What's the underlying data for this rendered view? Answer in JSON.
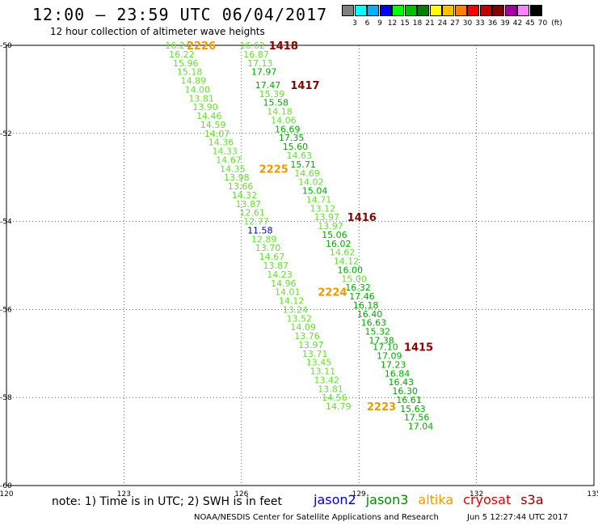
{
  "header": {
    "title": "12:00 – 23:59 UTC 06/04/2017",
    "subtitle": "12 hour collection of altimeter wave heights"
  },
  "colorbar": {
    "units": "(ft)",
    "labels": [
      "3",
      "6",
      "9",
      "12",
      "15",
      "18",
      "21",
      "24",
      "27",
      "30",
      "33",
      "36",
      "39",
      "42",
      "45",
      "70"
    ],
    "colors": [
      "#808080",
      "#00ffff",
      "#00b0ff",
      "#0000ff",
      "#00ff00",
      "#00c000",
      "#008000",
      "#ffff00",
      "#ffc000",
      "#ff8000",
      "#ff0000",
      "#c00000",
      "#800000",
      "#a000a0",
      "#ff80ff",
      "#000000"
    ]
  },
  "map": {
    "lon_ticks": [
      "120",
      "123",
      "126",
      "129",
      "132",
      "135"
    ],
    "lat_ticks": [
      "-50",
      "-52",
      "-54",
      "-56",
      "-58",
      "-60"
    ],
    "lon_range": [
      120,
      135
    ],
    "lat_range": [
      -50,
      -60
    ],
    "colors": {
      "light_green": "#66dd33",
      "green": "#00aa00",
      "blue": "#0000cc",
      "orange": "#ee9900",
      "maroon": "#880000"
    },
    "tracks": [
      {
        "label": "2226",
        "label_color": "orange",
        "label_pos": [
          124.6,
          -50.0
        ],
        "points": [
          {
            "v": "16.24",
            "lon": 124.05,
            "lat": -50.0,
            "c": "light_green"
          },
          {
            "v": "16.22",
            "lon": 124.15,
            "lat": -50.2,
            "c": "light_green"
          },
          {
            "v": "15.96",
            "lon": 124.25,
            "lat": -50.4,
            "c": "light_green"
          },
          {
            "v": "15.18",
            "lon": 124.35,
            "lat": -50.6,
            "c": "light_green"
          },
          {
            "v": "14.89",
            "lon": 124.45,
            "lat": -50.8,
            "c": "light_green"
          },
          {
            "v": "14.00",
            "lon": 124.55,
            "lat": -51.0,
            "c": "light_green"
          },
          {
            "v": "13.81",
            "lon": 124.65,
            "lat": -51.2,
            "c": "light_green"
          },
          {
            "v": "13.90",
            "lon": 124.75,
            "lat": -51.4,
            "c": "light_green"
          },
          {
            "v": "14.46",
            "lon": 124.85,
            "lat": -51.6,
            "c": "light_green"
          },
          {
            "v": "14.59",
            "lon": 124.95,
            "lat": -51.8,
            "c": "light_green"
          },
          {
            "v": "14.07",
            "lon": 125.05,
            "lat": -52.0,
            "c": "light_green"
          },
          {
            "v": "14.36",
            "lon": 125.15,
            "lat": -52.2,
            "c": "light_green"
          },
          {
            "v": "14.33",
            "lon": 125.25,
            "lat": -52.4,
            "c": "light_green"
          },
          {
            "v": "14.67",
            "lon": 125.35,
            "lat": -52.6,
            "c": "light_green"
          },
          {
            "v": "14.35",
            "lon": 125.45,
            "lat": -52.8,
            "c": "light_green"
          }
        ]
      },
      {
        "label": "2225",
        "label_color": "orange",
        "label_pos": [
          126.45,
          -52.8
        ],
        "points": [
          {
            "v": "13.98",
            "lon": 125.55,
            "lat": -53.0,
            "c": "light_green"
          },
          {
            "v": "13.66",
            "lon": 125.65,
            "lat": -53.2,
            "c": "light_green"
          },
          {
            "v": "14.32",
            "lon": 125.75,
            "lat": -53.4,
            "c": "light_green"
          },
          {
            "v": "13.87",
            "lon": 125.85,
            "lat": -53.6,
            "c": "light_green"
          },
          {
            "v": "12.61",
            "lon": 125.95,
            "lat": -53.8,
            "c": "light_green"
          },
          {
            "v": "12.77",
            "lon": 126.05,
            "lat": -54.0,
            "c": "light_green"
          },
          {
            "v": "11.58",
            "lon": 126.15,
            "lat": -54.2,
            "c": "blue"
          },
          {
            "v": "12.89",
            "lon": 126.25,
            "lat": -54.4,
            "c": "light_green"
          },
          {
            "v": "13.70",
            "lon": 126.35,
            "lat": -54.6,
            "c": "light_green"
          },
          {
            "v": "14.67",
            "lon": 126.45,
            "lat": -54.8,
            "c": "light_green"
          },
          {
            "v": "13.87",
            "lon": 126.55,
            "lat": -55.0,
            "c": "light_green"
          },
          {
            "v": "14.23",
            "lon": 126.65,
            "lat": -55.2,
            "c": "light_green"
          },
          {
            "v": "14.96",
            "lon": 126.75,
            "lat": -55.4,
            "c": "light_green"
          },
          {
            "v": "14.01",
            "lon": 126.85,
            "lat": -55.6,
            "c": "light_green"
          }
        ]
      },
      {
        "label": "2224",
        "label_color": "orange",
        "label_pos": [
          127.95,
          -55.6
        ],
        "points": [
          {
            "v": "14.12",
            "lon": 126.95,
            "lat": -55.8,
            "c": "light_green"
          },
          {
            "v": "13.24",
            "lon": 127.05,
            "lat": -56.0,
            "c": "light_green"
          },
          {
            "v": "13.52",
            "lon": 127.15,
            "lat": -56.2,
            "c": "light_green"
          },
          {
            "v": "14.09",
            "lon": 127.25,
            "lat": -56.4,
            "c": "light_green"
          },
          {
            "v": "13.76",
            "lon": 127.35,
            "lat": -56.6,
            "c": "light_green"
          },
          {
            "v": "13.97",
            "lon": 127.45,
            "lat": -56.8,
            "c": "light_green"
          },
          {
            "v": "13.71",
            "lon": 127.55,
            "lat": -57.0,
            "c": "light_green"
          },
          {
            "v": "13.45",
            "lon": 127.65,
            "lat": -57.2,
            "c": "light_green"
          },
          {
            "v": "13.11",
            "lon": 127.75,
            "lat": -57.4,
            "c": "light_green"
          },
          {
            "v": "13.42",
            "lon": 127.85,
            "lat": -57.6,
            "c": "light_green"
          },
          {
            "v": "13.81",
            "lon": 127.95,
            "lat": -57.8,
            "c": "light_green"
          },
          {
            "v": "14.56",
            "lon": 128.05,
            "lat": -58.0,
            "c": "light_green"
          },
          {
            "v": "14.79",
            "lon": 128.15,
            "lat": -58.2,
            "c": "light_green"
          }
        ]
      },
      {
        "label": "1418",
        "label_color": "maroon",
        "label_pos": [
          126.7,
          -50.0
        ],
        "points": [
          {
            "v": "16.62",
            "lon": 125.95,
            "lat": -50.0,
            "c": "light_green"
          },
          {
            "v": "16.87",
            "lon": 126.05,
            "lat": -50.2,
            "c": "light_green"
          },
          {
            "v": "17.13",
            "lon": 126.15,
            "lat": -50.4,
            "c": "light_green"
          },
          {
            "v": "17.97",
            "lon": 126.25,
            "lat": -50.6,
            "c": "green"
          },
          {
            "v": "17.47",
            "lon": 126.35,
            "lat": -50.9,
            "c": "green"
          }
        ]
      },
      {
        "label": "1417",
        "label_color": "maroon",
        "label_pos": [
          127.25,
          -50.9
        ],
        "points": [
          {
            "v": "15.39",
            "lon": 126.45,
            "lat": -51.1,
            "c": "light_green"
          },
          {
            "v": "15.58",
            "lon": 126.55,
            "lat": -51.3,
            "c": "green"
          },
          {
            "v": "14.18",
            "lon": 126.65,
            "lat": -51.5,
            "c": "light_green"
          },
          {
            "v": "14.06",
            "lon": 126.75,
            "lat": -51.7,
            "c": "light_green"
          },
          {
            "v": "16.69",
            "lon": 126.85,
            "lat": -51.9,
            "c": "green"
          },
          {
            "v": "17.35",
            "lon": 126.95,
            "lat": -52.1,
            "c": "green"
          },
          {
            "v": "15.60",
            "lon": 127.05,
            "lat": -52.3,
            "c": "green"
          },
          {
            "v": "14.63",
            "lon": 127.15,
            "lat": -52.5,
            "c": "light_green"
          },
          {
            "v": "15.71",
            "lon": 127.25,
            "lat": -52.7,
            "c": "green"
          },
          {
            "v": "14.69",
            "lon": 127.35,
            "lat": -52.9,
            "c": "light_green"
          },
          {
            "v": "14.02",
            "lon": 127.45,
            "lat": -53.1,
            "c": "light_green"
          },
          {
            "v": "15.04",
            "lon": 127.55,
            "lat": -53.3,
            "c": "green"
          },
          {
            "v": "14.71",
            "lon": 127.65,
            "lat": -53.5,
            "c": "light_green"
          },
          {
            "v": "13.12",
            "lon": 127.75,
            "lat": -53.7,
            "c": "light_green"
          },
          {
            "v": "13.97",
            "lon": 127.85,
            "lat": -53.9,
            "c": "light_green"
          }
        ]
      },
      {
        "label": "1416",
        "label_color": "maroon",
        "label_pos": [
          128.7,
          -53.9
        ],
        "points": [
          {
            "v": "13.97",
            "lon": 127.95,
            "lat": -54.1,
            "c": "light_green"
          },
          {
            "v": "15.06",
            "lon": 128.05,
            "lat": -54.3,
            "c": "green"
          },
          {
            "v": "16.02",
            "lon": 128.15,
            "lat": -54.5,
            "c": "green"
          },
          {
            "v": "14.62",
            "lon": 128.25,
            "lat": -54.7,
            "c": "light_green"
          },
          {
            "v": "14.12",
            "lon": 128.35,
            "lat": -54.9,
            "c": "light_green"
          },
          {
            "v": "16.00",
            "lon": 128.45,
            "lat": -55.1,
            "c": "green"
          },
          {
            "v": "15.00",
            "lon": 128.55,
            "lat": -55.3,
            "c": "light_green"
          },
          {
            "v": "16.32",
            "lon": 128.65,
            "lat": -55.5,
            "c": "green"
          },
          {
            "v": "17.46",
            "lon": 128.75,
            "lat": -55.7,
            "c": "green"
          },
          {
            "v": "16.18",
            "lon": 128.85,
            "lat": -55.9,
            "c": "green"
          },
          {
            "v": "16.40",
            "lon": 128.95,
            "lat": -56.1,
            "c": "green"
          },
          {
            "v": "16.63",
            "lon": 129.05,
            "lat": -56.3,
            "c": "green"
          },
          {
            "v": "15.32",
            "lon": 129.15,
            "lat": -56.5,
            "c": "green"
          },
          {
            "v": "17.38",
            "lon": 129.25,
            "lat": -56.7,
            "c": "green"
          },
          {
            "v": "17.10",
            "lon": 129.35,
            "lat": -56.85,
            "c": "green"
          }
        ]
      },
      {
        "label": "1415",
        "label_color": "maroon",
        "label_pos": [
          130.15,
          -56.85
        ],
        "points": [
          {
            "v": "17.09",
            "lon": 129.45,
            "lat": -57.05,
            "c": "green"
          },
          {
            "v": "17.23",
            "lon": 129.55,
            "lat": -57.25,
            "c": "green"
          },
          {
            "v": "16.84",
            "lon": 129.65,
            "lat": -57.45,
            "c": "green"
          },
          {
            "v": "16.43",
            "lon": 129.75,
            "lat": -57.65,
            "c": "green"
          },
          {
            "v": "16.30",
            "lon": 129.85,
            "lat": -57.85,
            "c": "green"
          },
          {
            "v": "16.61",
            "lon": 129.95,
            "lat": -58.05,
            "c": "green"
          },
          {
            "v": "15.63",
            "lon": 130.05,
            "lat": -58.25,
            "c": "green"
          },
          {
            "v": "17.56",
            "lon": 130.15,
            "lat": -58.45,
            "c": "green"
          },
          {
            "v": "17.04",
            "lon": 130.25,
            "lat": -58.65,
            "c": "green"
          }
        ]
      },
      {
        "label": "2223",
        "label_color": "orange",
        "label_pos": [
          129.2,
          -58.2
        ],
        "points": []
      }
    ]
  },
  "footer": {
    "note": "note: 1) Time is in UTC; 2) SWH is in feet",
    "satellites": [
      {
        "name": "jason2",
        "color": "#0000cc"
      },
      {
        "name": "jason3",
        "color": "#008800"
      },
      {
        "name": "altika",
        "color": "#ee9900"
      },
      {
        "name": "cryosat",
        "color": "#dd0000"
      },
      {
        "name": "s3a",
        "color": "#880000"
      }
    ],
    "credit": "NOAA/NESDIS Center for Satellite Applications and Research",
    "timestamp": "Jun  5 12:27:44 UTC 2017"
  }
}
